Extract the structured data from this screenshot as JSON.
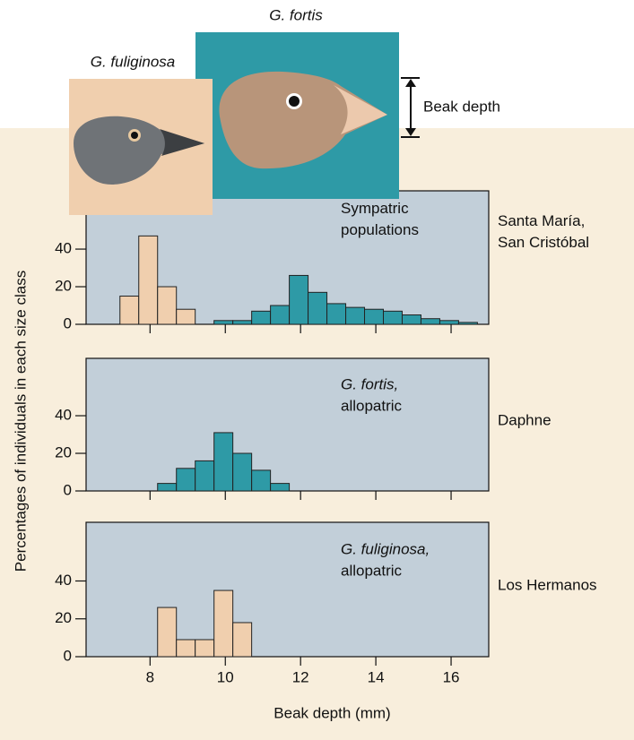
{
  "header": {
    "fortis_label": "G. fortis",
    "fuliginosa_label": "G. fuliginosa",
    "beak_label": "Beak depth",
    "ylabel": "Percentages of individuals in each size class"
  },
  "chart_data": [
    {
      "type": "histogram",
      "annotation": [
        "Sympatric",
        "populations"
      ],
      "annotation_italic": false,
      "island": [
        "Santa María,",
        "San Cristóbal"
      ],
      "xlim": [
        6.3,
        17
      ],
      "ylim": [
        0,
        71
      ],
      "yticks": [
        0,
        20,
        40
      ],
      "series": [
        {
          "color": "#f0cfae",
          "bins": [
            7.2,
            7.7,
            8.2,
            8.7,
            9.2
          ],
          "values": [
            15,
            47,
            20,
            8
          ]
        },
        {
          "color": "#2e9aa6",
          "bins": [
            9.7,
            10.2,
            10.7,
            11.2,
            11.7,
            12.2,
            12.7,
            13.2,
            13.7,
            14.2,
            14.7,
            15.2,
            15.7,
            16.2,
            16.7
          ],
          "values": [
            2,
            2,
            7,
            10,
            26,
            17,
            11,
            9,
            8,
            7,
            5,
            3,
            2,
            1
          ]
        }
      ]
    },
    {
      "type": "histogram",
      "annotation": [
        "G. fortis,",
        "allopatric"
      ],
      "annotation_italic": true,
      "island": [
        "Daphne"
      ],
      "xlim": [
        6.3,
        17
      ],
      "ylim": [
        0,
        70.5
      ],
      "yticks": [
        0,
        20,
        40
      ],
      "series": [
        {
          "color": "#2e9aa6",
          "bins": [
            8.2,
            8.7,
            9.2,
            9.7,
            10.2,
            10.7,
            11.2,
            11.7
          ],
          "values": [
            4,
            12,
            16,
            31,
            20,
            11,
            4
          ]
        }
      ]
    },
    {
      "type": "histogram",
      "annotation": [
        "G. fuliginosa,",
        "allopatric"
      ],
      "annotation_italic": true,
      "island": [
        "Los Hermanos"
      ],
      "xlim": [
        6.3,
        17
      ],
      "ylim": [
        0,
        71
      ],
      "yticks": [
        0,
        20,
        40
      ],
      "xticks": [
        8,
        10,
        12,
        14,
        16
      ],
      "xlabel": "Beak depth (mm)",
      "series": [
        {
          "color": "#f0cfae",
          "bins": [
            8.2,
            8.7,
            9.2,
            9.7,
            10.2,
            10.7
          ],
          "values": [
            26,
            9,
            9,
            35,
            18
          ]
        }
      ]
    }
  ]
}
